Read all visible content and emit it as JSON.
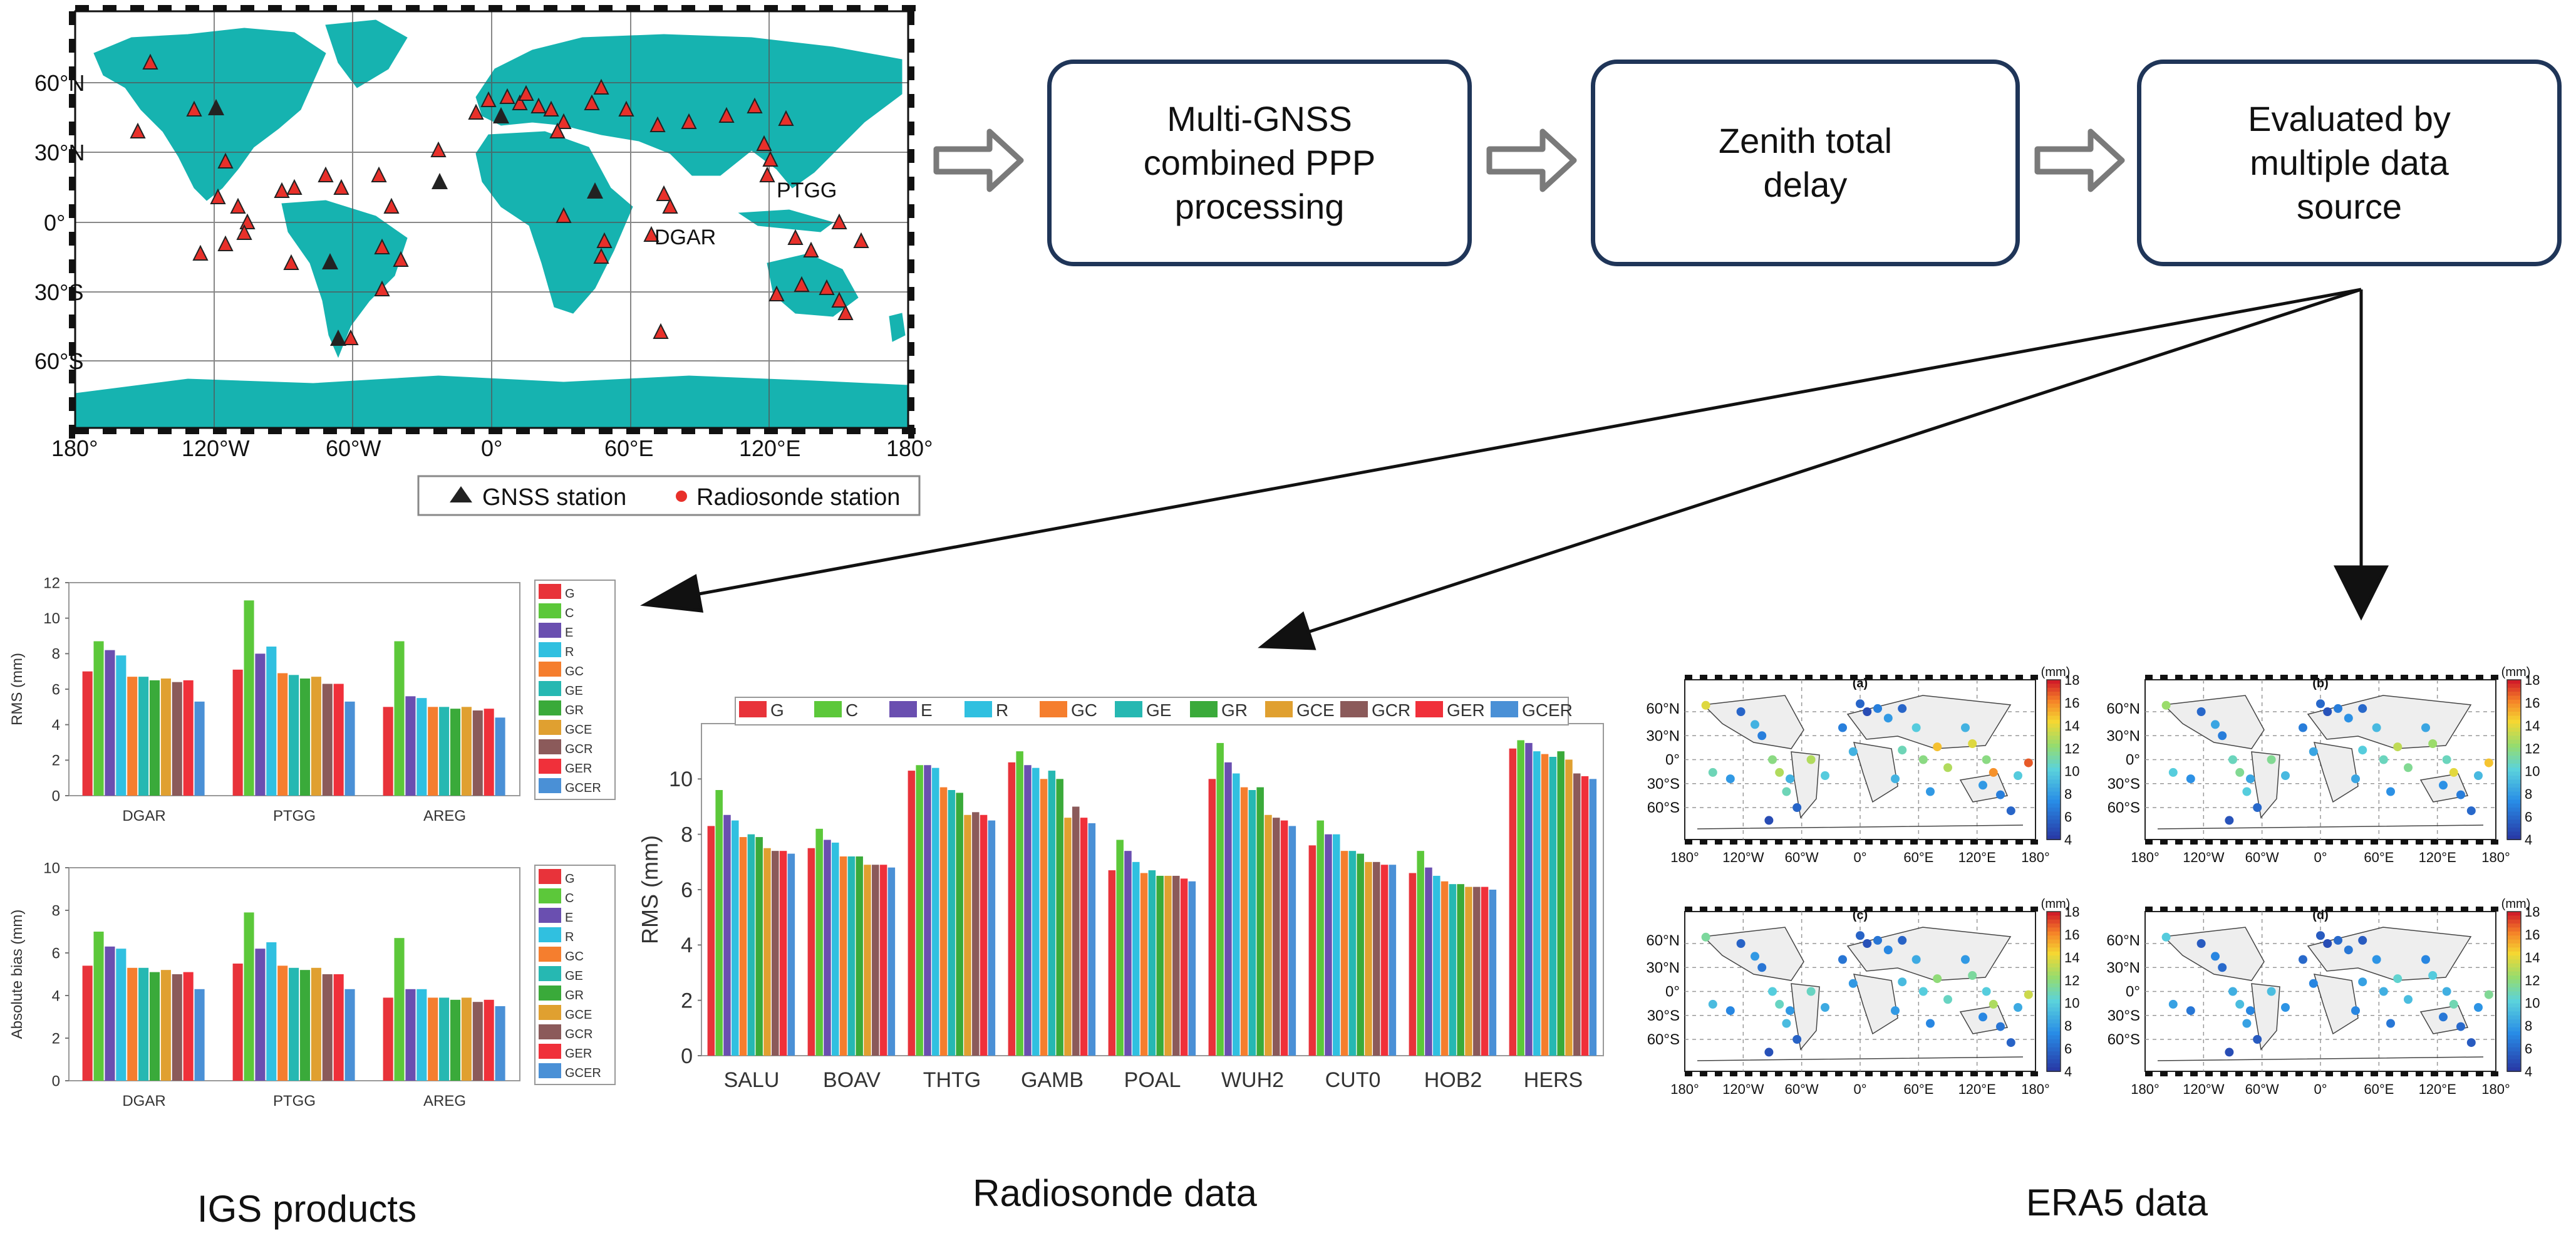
{
  "flow": {
    "box1": "Multi-GNSS\ncombined PPP\nprocessing",
    "box2": "Zenith total\ndelay",
    "box3": "Evaluated by\nmultiple data\nsource"
  },
  "map": {
    "lat_labels": [
      "60°N",
      "30°N",
      "0°",
      "30°S",
      "60°S"
    ],
    "lon_labels": [
      "180°",
      "120°W",
      "60°W",
      "0°",
      "60°E",
      "120°E",
      "180°"
    ],
    "station_labels": [
      "PTGG",
      "DGAR"
    ],
    "legend": {
      "gnss": "GNSS station",
      "radiosonde": "Radiosonde station"
    },
    "colors": {
      "land": "#16b3b0",
      "radiosonde": "#e8302a",
      "gnss": "#222222"
    }
  },
  "captions": {
    "igs": "IGS products",
    "radiosonde": "Radiosonde data",
    "era5": "ERA5 data"
  },
  "chart_data": [
    {
      "type": "bar",
      "id": "igs-rms",
      "categories": [
        "DGAR",
        "PTGG",
        "AREG"
      ],
      "ylabel": "RMS (mm)",
      "ylim": [
        0,
        12
      ],
      "yticks": [
        0,
        2,
        4,
        6,
        8,
        10,
        12
      ],
      "series": [
        {
          "name": "G",
          "color": "#e8333a",
          "values": [
            7.0,
            7.1,
            5.0
          ]
        },
        {
          "name": "C",
          "color": "#5cc83a",
          "values": [
            8.7,
            11.0,
            8.7
          ]
        },
        {
          "name": "E",
          "color": "#6a4fb0",
          "values": [
            8.2,
            8.0,
            5.6
          ]
        },
        {
          "name": "R",
          "color": "#30c0e0",
          "values": [
            7.9,
            8.4,
            5.5
          ]
        },
        {
          "name": "GC",
          "color": "#f57e2e",
          "values": [
            6.7,
            6.9,
            5.0
          ]
        },
        {
          "name": "GE",
          "color": "#26b8b2",
          "values": [
            6.7,
            6.8,
            5.0
          ]
        },
        {
          "name": "GR",
          "color": "#3aaa3a",
          "values": [
            6.5,
            6.6,
            4.9
          ]
        },
        {
          "name": "GCE",
          "color": "#e0a030",
          "values": [
            6.6,
            6.7,
            5.0
          ]
        },
        {
          "name": "GCR",
          "color": "#8b5a5a",
          "values": [
            6.4,
            6.3,
            4.8
          ]
        },
        {
          "name": "GER",
          "color": "#f0303a",
          "values": [
            6.5,
            6.3,
            4.9
          ]
        },
        {
          "name": "GCER",
          "color": "#4a90d6",
          "values": [
            5.3,
            5.3,
            4.4
          ]
        }
      ]
    },
    {
      "type": "bar",
      "id": "igs-bias",
      "categories": [
        "DGAR",
        "PTGG",
        "AREG"
      ],
      "ylabel": "Absolute bias (mm)",
      "ylim": [
        0,
        10
      ],
      "yticks": [
        0,
        2,
        4,
        6,
        8,
        10
      ],
      "series": [
        {
          "name": "G",
          "color": "#e8333a",
          "values": [
            5.4,
            5.5,
            3.9
          ]
        },
        {
          "name": "C",
          "color": "#5cc83a",
          "values": [
            7.0,
            7.9,
            6.7
          ]
        },
        {
          "name": "E",
          "color": "#6a4fb0",
          "values": [
            6.3,
            6.2,
            4.3
          ]
        },
        {
          "name": "R",
          "color": "#30c0e0",
          "values": [
            6.2,
            6.5,
            4.3
          ]
        },
        {
          "name": "GC",
          "color": "#f57e2e",
          "values": [
            5.3,
            5.4,
            3.9
          ]
        },
        {
          "name": "GE",
          "color": "#26b8b2",
          "values": [
            5.3,
            5.3,
            3.9
          ]
        },
        {
          "name": "GR",
          "color": "#3aaa3a",
          "values": [
            5.1,
            5.2,
            3.8
          ]
        },
        {
          "name": "GCE",
          "color": "#e0a030",
          "values": [
            5.2,
            5.3,
            3.9
          ]
        },
        {
          "name": "GCR",
          "color": "#8b5a5a",
          "values": [
            5.0,
            5.0,
            3.7
          ]
        },
        {
          "name": "GER",
          "color": "#f0303a",
          "values": [
            5.1,
            5.0,
            3.8
          ]
        },
        {
          "name": "GCER",
          "color": "#4a90d6",
          "values": [
            4.3,
            4.3,
            3.5
          ]
        }
      ]
    },
    {
      "type": "bar",
      "id": "radiosonde-rms",
      "categories": [
        "SALU",
        "BOAV",
        "THTG",
        "GAMB",
        "POAL",
        "WUH2",
        "CUT0",
        "HOB2",
        "HERS"
      ],
      "ylabel": "RMS (mm)",
      "ylim": [
        0,
        12
      ],
      "yticks": [
        0,
        2,
        4,
        6,
        8,
        10
      ],
      "series": [
        {
          "name": "G",
          "color": "#e8333a",
          "values": [
            8.3,
            7.5,
            10.3,
            10.6,
            6.7,
            10.0,
            7.6,
            6.6,
            11.1
          ]
        },
        {
          "name": "C",
          "color": "#5cc83a",
          "values": [
            9.6,
            8.2,
            10.5,
            11.0,
            7.8,
            11.3,
            8.5,
            7.4,
            11.4
          ]
        },
        {
          "name": "E",
          "color": "#6a4fb0",
          "values": [
            8.7,
            7.8,
            10.5,
            10.5,
            7.4,
            10.6,
            8.0,
            6.8,
            11.3
          ]
        },
        {
          "name": "R",
          "color": "#30c0e0",
          "values": [
            8.5,
            7.7,
            10.4,
            10.4,
            7.0,
            10.2,
            8.0,
            6.5,
            11.0
          ]
        },
        {
          "name": "GC",
          "color": "#f57e2e",
          "values": [
            7.9,
            7.2,
            9.7,
            10.0,
            6.6,
            9.7,
            7.4,
            6.3,
            10.9
          ]
        },
        {
          "name": "GE",
          "color": "#26b8b2",
          "values": [
            8.0,
            7.2,
            9.6,
            10.3,
            6.7,
            9.6,
            7.4,
            6.2,
            10.8
          ]
        },
        {
          "name": "GR",
          "color": "#3aaa3a",
          "values": [
            7.9,
            7.2,
            9.5,
            10.0,
            6.5,
            9.7,
            7.3,
            6.2,
            11.0
          ]
        },
        {
          "name": "GCE",
          "color": "#e0a030",
          "values": [
            7.5,
            6.9,
            8.7,
            8.6,
            6.5,
            8.7,
            7.0,
            6.1,
            10.7
          ]
        },
        {
          "name": "GCR",
          "color": "#8b5a5a",
          "values": [
            7.4,
            6.9,
            8.8,
            9.0,
            6.5,
            8.6,
            7.0,
            6.1,
            10.2
          ]
        },
        {
          "name": "GER",
          "color": "#f0303a",
          "values": [
            7.4,
            6.9,
            8.7,
            8.6,
            6.4,
            8.5,
            6.9,
            6.1,
            10.1
          ]
        },
        {
          "name": "GCER",
          "color": "#4a90d6",
          "values": [
            7.3,
            6.8,
            8.5,
            8.4,
            6.3,
            8.3,
            6.9,
            6.0,
            10.0
          ]
        }
      ]
    },
    {
      "type": "scatter",
      "id": "era5-maps",
      "panels": [
        "(a)",
        "(b)",
        "(c)",
        "(d)"
      ],
      "colorbar": {
        "unit": "(mm)",
        "range": [
          4,
          18
        ],
        "ticks": [
          "18",
          "16",
          "14",
          "12",
          "10",
          "8",
          "6",
          "4"
        ]
      },
      "lat_labels": [
        "60°N",
        "30°N",
        "0°",
        "30°S",
        "60°S"
      ],
      "lon_labels": [
        "180°",
        "120°W",
        "60°W",
        "0°",
        "60°E",
        "120°E",
        "180°"
      ]
    }
  ]
}
